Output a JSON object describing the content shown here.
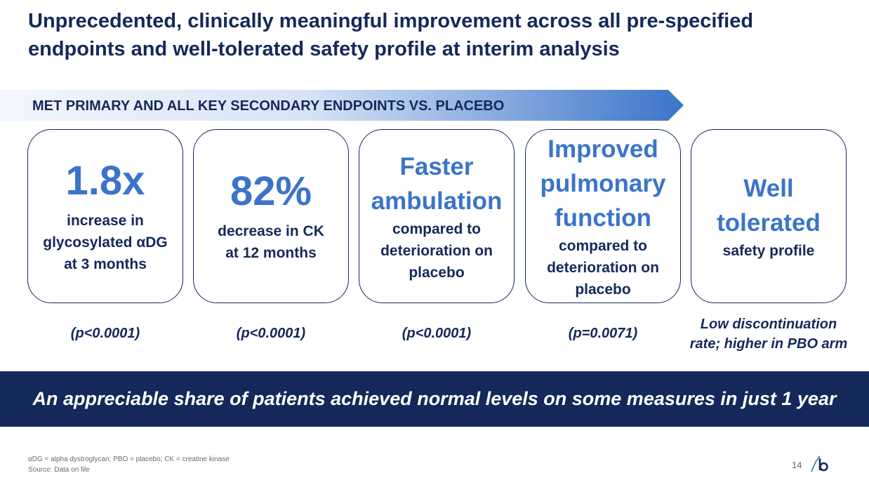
{
  "title": {
    "line1": "Unprecedented, clinically meaningful improvement across all pre-specified",
    "line2": "endpoints and well-tolerated safety profile at interim analysis"
  },
  "banner": {
    "label": "MET PRIMARY AND ALL KEY SECONDARY ENDPOINTS VS. PLACEBO"
  },
  "cards": [
    {
      "headline": [
        "1.8x"
      ],
      "detail": [
        "increase in",
        "glycosylated αDG",
        "at 3 months"
      ],
      "p_value": [
        "(p<0.0001)"
      ]
    },
    {
      "headline": [
        "82%"
      ],
      "detail": [
        "decrease in CK",
        "at 12 months"
      ],
      "p_value": [
        "(p<0.0001)"
      ]
    },
    {
      "headline": [
        "Faster",
        "ambulation"
      ],
      "detail": [
        "compared to",
        "deterioration on",
        "placebo"
      ],
      "p_value": [
        "(p<0.0001)"
      ]
    },
    {
      "headline": [
        "Improved",
        "pulmonary",
        "function"
      ],
      "detail": [
        "compared to",
        "deterioration on",
        "placebo"
      ],
      "p_value": [
        "(p=0.0071)"
      ]
    },
    {
      "headline": [
        "Well",
        "tolerated"
      ],
      "detail": [
        "safety profile"
      ],
      "p_value": [
        "Low discontinuation",
        "rate; higher in PBO arm"
      ]
    }
  ],
  "footer_banner": {
    "text": "An appreciable share of patients achieved normal levels on some measures in just 1 year"
  },
  "footnotes": {
    "abbreviations": "αDG = alpha dystroglycan; PBO = placebo; CK = creatine kinase",
    "source": "Source: Data on file"
  },
  "page_number": "14",
  "colors": {
    "navy": "#14295a",
    "accent_blue": "#3b74c9",
    "banner_light": "#f3f6fc",
    "banner_dark": "#3b74c9"
  },
  "icons": {
    "logo": "company-logo-icon"
  }
}
